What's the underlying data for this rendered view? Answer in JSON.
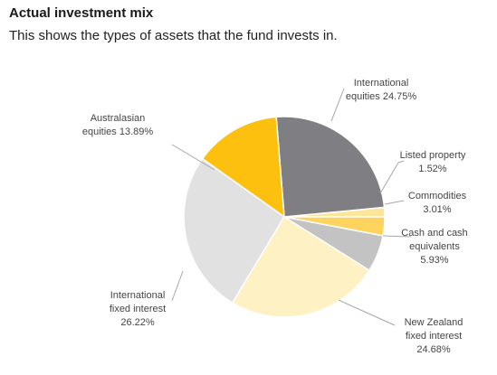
{
  "header": {
    "title": "Actual investment mix",
    "subtitle": "This shows the types of assets that the fund invests in."
  },
  "chart_data": {
    "type": "pie",
    "start_angle_deg": 0,
    "direction": "counterclockwise",
    "slices": [
      {
        "name": "Listed property",
        "value": 1.52,
        "label_lines": [
          "Listed property",
          "1.52%"
        ],
        "color": "#FDE59A"
      },
      {
        "name": "International equities",
        "value": 24.75,
        "label_lines": [
          "International",
          "equities 24.75%"
        ],
        "color": "#7E7E83"
      },
      {
        "name": "Australasian equities",
        "value": 13.89,
        "label_lines": [
          "Australasian",
          "equities 13.89%"
        ],
        "color": "#FEC00F"
      },
      {
        "name": "International fixed interest",
        "value": 26.22,
        "label_lines": [
          "International",
          "fixed interest",
          "26.22%"
        ],
        "color": "#E1E1E1"
      },
      {
        "name": "New Zealand fixed interest",
        "value": 24.68,
        "label_lines": [
          "New Zealand",
          "fixed interest",
          "24.68%"
        ],
        "color": "#FEF1C4"
      },
      {
        "name": "Cash and cash equivalents",
        "value": 5.93,
        "label_lines": [
          "Cash and cash",
          "equivalents",
          "5.93%"
        ],
        "color": "#C3C3C3"
      },
      {
        "name": "Commodities",
        "value": 3.01,
        "label_lines": [
          "Commodities",
          "3.01%"
        ],
        "color": "#FED45F"
      }
    ]
  }
}
